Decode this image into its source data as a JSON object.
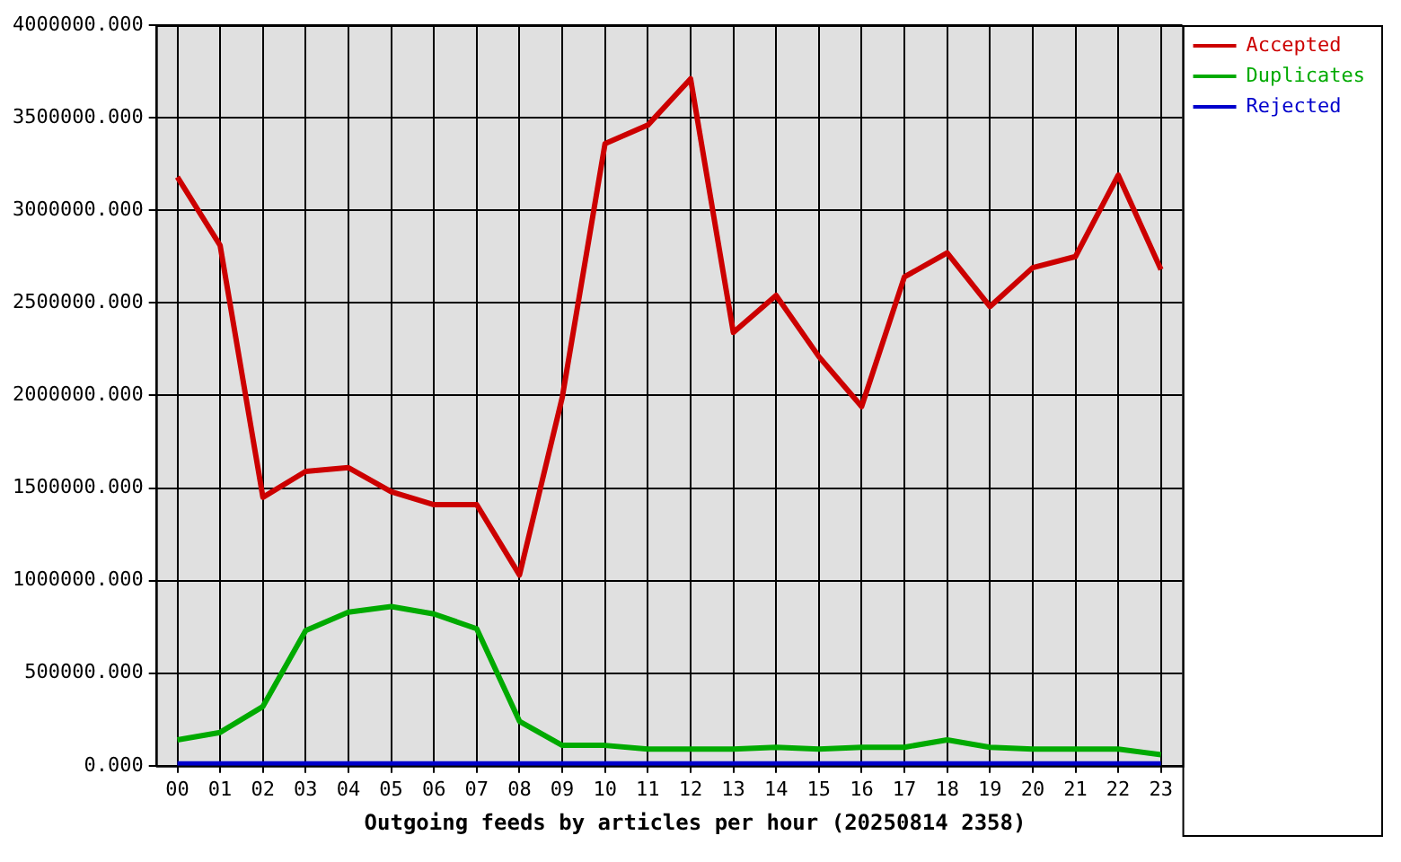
{
  "chart_data": {
    "type": "line",
    "title": "Outgoing feeds by articles per hour (20250814 2358)",
    "categories": [
      "00",
      "01",
      "02",
      "03",
      "04",
      "05",
      "06",
      "07",
      "08",
      "09",
      "10",
      "11",
      "12",
      "13",
      "14",
      "15",
      "16",
      "17",
      "18",
      "19",
      "20",
      "21",
      "22",
      "23"
    ],
    "series": [
      {
        "name": "Accepted",
        "color": "#cc0000",
        "values": [
          3180000,
          2810000,
          1450000,
          1590000,
          1610000,
          1480000,
          1410000,
          1410000,
          1030000,
          1990000,
          3360000,
          3460000,
          3710000,
          2340000,
          2540000,
          2210000,
          1940000,
          2640000,
          2770000,
          2480000,
          2690000,
          2750000,
          3190000,
          2680000
        ]
      },
      {
        "name": "Duplicates",
        "color": "#00aa00",
        "values": [
          140000,
          180000,
          320000,
          730000,
          830000,
          860000,
          820000,
          740000,
          240000,
          110000,
          110000,
          90000,
          90000,
          90000,
          100000,
          90000,
          100000,
          100000,
          140000,
          100000,
          90000,
          90000,
          90000,
          60000
        ]
      },
      {
        "name": "Rejected",
        "color": "#0000cc",
        "values": [
          10000,
          10000,
          10000,
          10000,
          10000,
          10000,
          10000,
          10000,
          10000,
          10000,
          10000,
          10000,
          10000,
          10000,
          10000,
          10000,
          10000,
          10000,
          10000,
          10000,
          10000,
          10000,
          10000,
          10000
        ]
      }
    ],
    "ylim": [
      0,
      4000000
    ],
    "yticks": [
      {
        "value": 0,
        "label": "0.000"
      },
      {
        "value": 500000,
        "label": "500000.000"
      },
      {
        "value": 1000000,
        "label": "1000000.000"
      },
      {
        "value": 1500000,
        "label": "1500000.000"
      },
      {
        "value": 2000000,
        "label": "2000000.000"
      },
      {
        "value": 2500000,
        "label": "2500000.000"
      },
      {
        "value": 3000000,
        "label": "3000000.000"
      },
      {
        "value": 3500000,
        "label": "3500000.000"
      },
      {
        "value": 4000000,
        "label": "4000000.000"
      }
    ],
    "grid": true,
    "legend": "top right",
    "marker": "none",
    "line_style": "solid"
  }
}
